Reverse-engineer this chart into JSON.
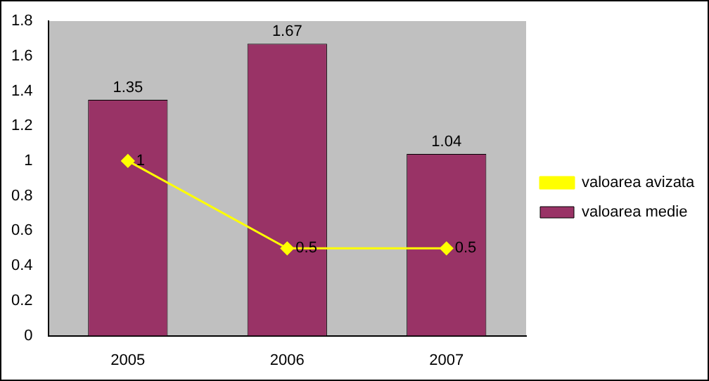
{
  "chart_data": {
    "type": "bar",
    "categories": [
      "2005",
      "2006",
      "2007"
    ],
    "series": [
      {
        "name": "valoarea medie",
        "color": "#993366",
        "values": [
          1.35,
          1.67,
          1.04
        ]
      },
      {
        "name": "valoarea avizata",
        "type": "line",
        "color": "#ffff00",
        "values": [
          1,
          0.5,
          0.5
        ],
        "marker": "diamond"
      }
    ],
    "ylim": [
      0,
      1.8
    ],
    "yticks": [
      0,
      0.2,
      0.4,
      0.6,
      0.8,
      1,
      1.2,
      1.4,
      1.6,
      1.8
    ],
    "grid": false,
    "legend": "right",
    "data_labels": true
  }
}
